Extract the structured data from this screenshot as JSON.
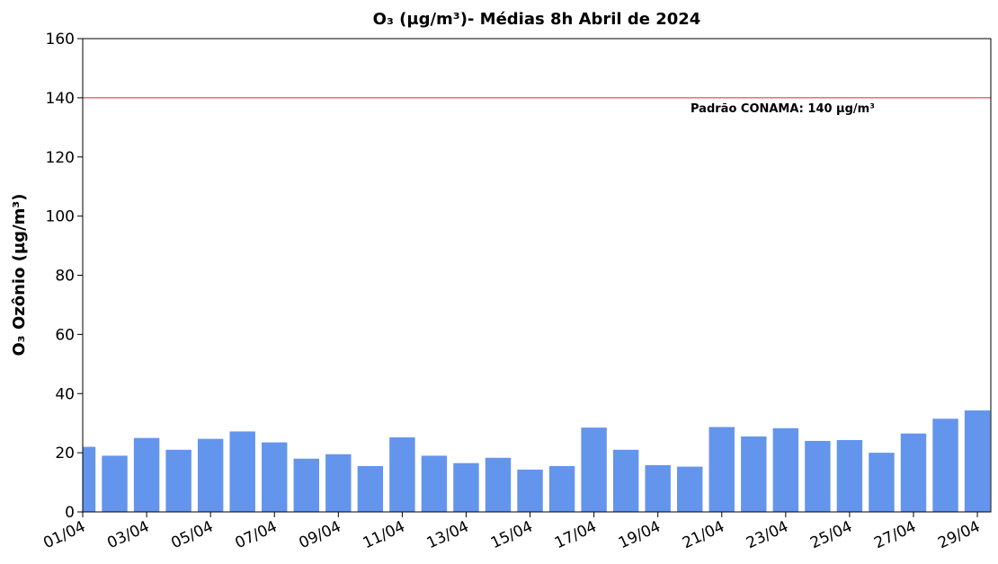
{
  "chart_data": {
    "type": "bar",
    "title": "O₃ (µg/m³)- Médias 8h Abril de  2024",
    "y_label": "O₃ Ozônio (µg/m³)",
    "categories": [
      "01/04",
      null,
      "03/04",
      null,
      "05/04",
      null,
      "07/04",
      null,
      "09/04",
      null,
      "11/04",
      null,
      "13/04",
      null,
      "15/04",
      null,
      "17/04",
      null,
      "19/04",
      null,
      "21/04",
      null,
      "23/04",
      null,
      "25/04",
      null,
      "27/04",
      null,
      "29/04"
    ],
    "values": [
      22,
      19,
      25,
      21,
      24.7,
      27.2,
      23.5,
      18,
      19.5,
      15.5,
      25.2,
      19,
      16.5,
      18.3,
      14.3,
      15.5,
      28.5,
      21,
      15.8,
      15.3,
      28.7,
      25.5,
      28.3,
      24,
      24.3,
      20,
      26.5,
      31.5,
      34.3
    ],
    "color": "#6495ed",
    "ylim": [
      0,
      160
    ],
    "yticks": [
      0,
      20,
      40,
      60,
      80,
      100,
      120,
      140,
      160
    ],
    "reference_line": {
      "value": 140,
      "color": "#d62728",
      "label": "Padrão CONAMA: 140 μg/m³"
    }
  }
}
